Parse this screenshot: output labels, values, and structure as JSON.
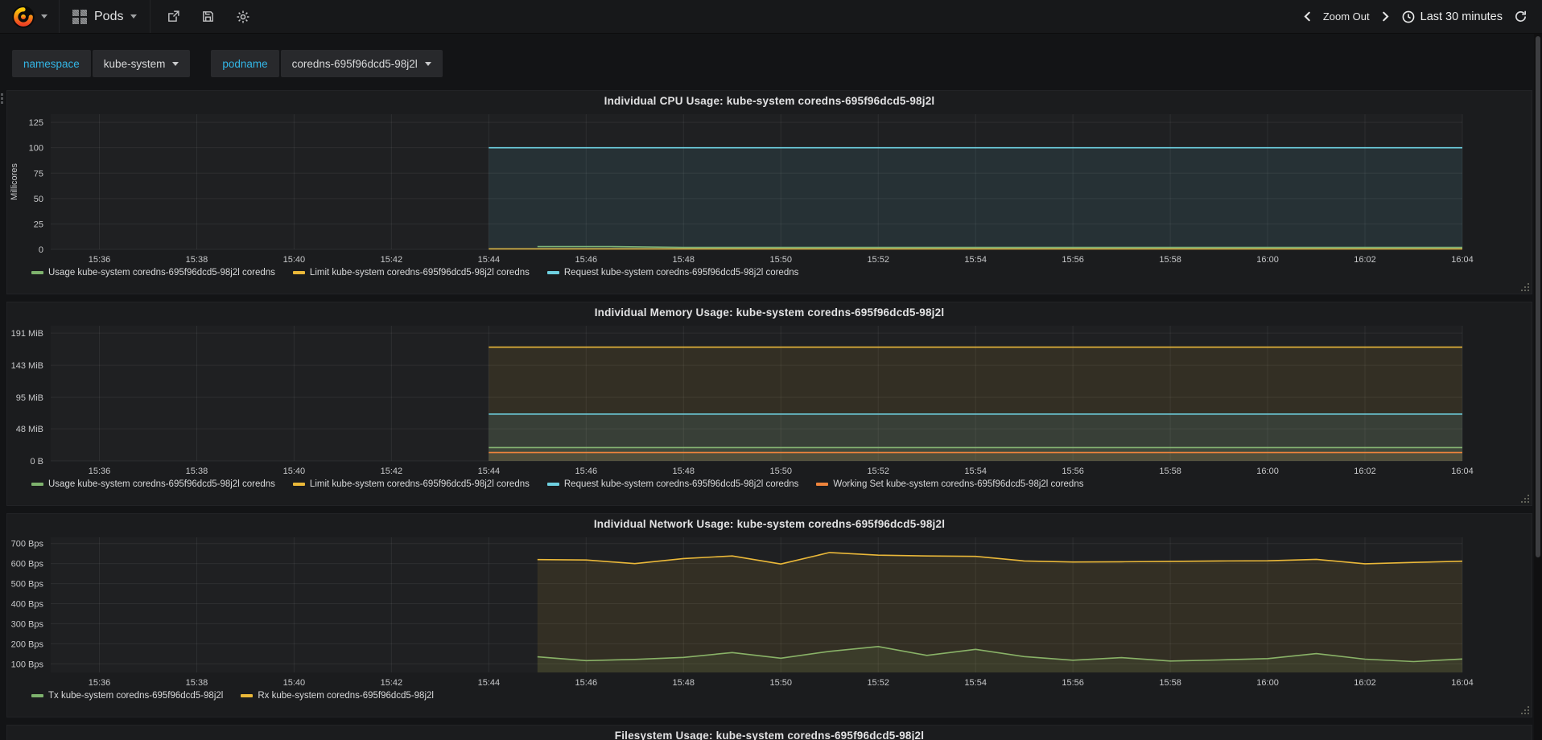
{
  "navbar": {
    "dashboard_title": "Pods",
    "share_icon": "share-export",
    "save_icon": "save-floppy",
    "settings_icon": "gear",
    "zoom_out_label": "Zoom Out",
    "time_range_label": "Last 30 minutes"
  },
  "variables": [
    {
      "name": "namespace",
      "value": "kube-system"
    },
    {
      "name": "podname",
      "value": "coredns-695f96dcd5-98j2l"
    }
  ],
  "colors": {
    "green": "#7eb26d",
    "yellow": "#eab839",
    "cyan": "#6ed0e0",
    "orange": "#ef843c",
    "accent": "#33b5e5"
  },
  "time_axis": {
    "xlim": [
      935,
      964
    ],
    "ticks": [
      {
        "t": 936,
        "label": "15:36"
      },
      {
        "t": 938,
        "label": "15:38"
      },
      {
        "t": 940,
        "label": "15:40"
      },
      {
        "t": 942,
        "label": "15:42"
      },
      {
        "t": 944,
        "label": "15:44"
      },
      {
        "t": 946,
        "label": "15:46"
      },
      {
        "t": 948,
        "label": "15:48"
      },
      {
        "t": 950,
        "label": "15:50"
      },
      {
        "t": 952,
        "label": "15:52"
      },
      {
        "t": 954,
        "label": "15:54"
      },
      {
        "t": 956,
        "label": "15:56"
      },
      {
        "t": 958,
        "label": "15:58"
      },
      {
        "t": 960,
        "label": "16:00"
      },
      {
        "t": 962,
        "label": "16:02"
      },
      {
        "t": 964,
        "label": "16:04"
      }
    ]
  },
  "chart_data": [
    {
      "type": "area",
      "title": "Individual CPU Usage: kube-system coredns-695f96dcd5-98j2l",
      "ylabel": "Millicores",
      "ylim": [
        0,
        133
      ],
      "yticks": [
        {
          "v": 0,
          "label": "0"
        },
        {
          "v": 25,
          "label": "25"
        },
        {
          "v": 50,
          "label": "50"
        },
        {
          "v": 75,
          "label": "75"
        },
        {
          "v": 100,
          "label": "100"
        },
        {
          "v": 125,
          "label": "125"
        }
      ],
      "series": [
        {
          "name": "Usage kube-system coredns-695f96dcd5-98j2l coredns",
          "color": "#7eb26d",
          "points": [
            [
              945,
              2.8
            ],
            [
              946.5,
              2.8
            ],
            [
              948,
              1.9
            ],
            [
              964,
              1.9
            ]
          ]
        },
        {
          "name": "Limit kube-system coredns-695f96dcd5-98j2l coredns",
          "color": "#eab839",
          "points": [
            [
              944,
              0.5
            ],
            [
              964,
              0.5
            ]
          ]
        },
        {
          "name": "Request kube-system coredns-695f96dcd5-98j2l coredns",
          "color": "#6ed0e0",
          "points": [
            [
              944,
              100
            ],
            [
              964,
              100
            ]
          ]
        }
      ]
    },
    {
      "type": "area",
      "title": "Individual Memory Usage: kube-system coredns-695f96dcd5-98j2l",
      "ylabel": "",
      "ylim": [
        0,
        202
      ],
      "yticks": [
        {
          "v": 0,
          "label": "0 B"
        },
        {
          "v": 48,
          "label": "48 MiB"
        },
        {
          "v": 95,
          "label": "95 MiB"
        },
        {
          "v": 143,
          "label": "143 MiB"
        },
        {
          "v": 191,
          "label": "191 MiB"
        }
      ],
      "series": [
        {
          "name": "Usage kube-system coredns-695f96dcd5-98j2l coredns",
          "color": "#7eb26d",
          "points": [
            [
              944,
              20
            ],
            [
              964,
              20
            ]
          ]
        },
        {
          "name": "Limit kube-system coredns-695f96dcd5-98j2l coredns",
          "color": "#eab839",
          "points": [
            [
              944,
              170
            ],
            [
              964,
              170
            ]
          ]
        },
        {
          "name": "Request kube-system coredns-695f96dcd5-98j2l coredns",
          "color": "#6ed0e0",
          "points": [
            [
              944,
              70
            ],
            [
              964,
              70
            ]
          ]
        },
        {
          "name": "Working Set kube-system coredns-695f96dcd5-98j2l coredns",
          "color": "#ef843c",
          "points": [
            [
              944,
              12.5
            ],
            [
              964,
              12.5
            ]
          ]
        }
      ]
    },
    {
      "type": "area",
      "title": "Individual Network Usage: kube-system coredns-695f96dcd5-98j2l",
      "ylabel": "",
      "ylim": [
        57,
        731
      ],
      "yticks": [
        {
          "v": 100,
          "label": "100 Bps"
        },
        {
          "v": 200,
          "label": "200 Bps"
        },
        {
          "v": 300,
          "label": "300 Bps"
        },
        {
          "v": 400,
          "label": "400 Bps"
        },
        {
          "v": 500,
          "label": "500 Bps"
        },
        {
          "v": 600,
          "label": "600 Bps"
        },
        {
          "v": 700,
          "label": "700 Bps"
        }
      ],
      "series": [
        {
          "name": "Tx kube-system coredns-695f96dcd5-98j2l",
          "color": "#7eb26d",
          "points": [
            [
              945,
              135
            ],
            [
              946,
              116
            ],
            [
              947,
              122
            ],
            [
              948,
              132
            ],
            [
              949,
              156
            ],
            [
              950,
              128
            ],
            [
              951,
              162
            ],
            [
              952,
              186
            ],
            [
              953,
              142
            ],
            [
              954,
              172
            ],
            [
              955,
              136
            ],
            [
              956,
              118
            ],
            [
              957,
              131
            ],
            [
              958,
              114
            ],
            [
              959,
              119
            ],
            [
              960,
              126
            ],
            [
              961,
              151
            ],
            [
              962,
              123
            ],
            [
              963,
              111
            ],
            [
              964,
              124
            ]
          ]
        },
        {
          "name": "Rx kube-system coredns-695f96dcd5-98j2l",
          "color": "#eab839",
          "points": [
            [
              945,
              620
            ],
            [
              946,
              618
            ],
            [
              947,
              600
            ],
            [
              948,
              625
            ],
            [
              949,
              638
            ],
            [
              950,
              598
            ],
            [
              951,
              655
            ],
            [
              952,
              642
            ],
            [
              953,
              638
            ],
            [
              954,
              636
            ],
            [
              955,
              613
            ],
            [
              956,
              608
            ],
            [
              957,
              609
            ],
            [
              958,
              611
            ],
            [
              959,
              613
            ],
            [
              960,
              614
            ],
            [
              961,
              621
            ],
            [
              962,
              599
            ],
            [
              963,
              606
            ],
            [
              964,
              612
            ]
          ]
        }
      ]
    },
    {
      "type": "area",
      "title": "Filesystem Usage: kube-system coredns-695f96dcd5-98j2l"
    }
  ]
}
